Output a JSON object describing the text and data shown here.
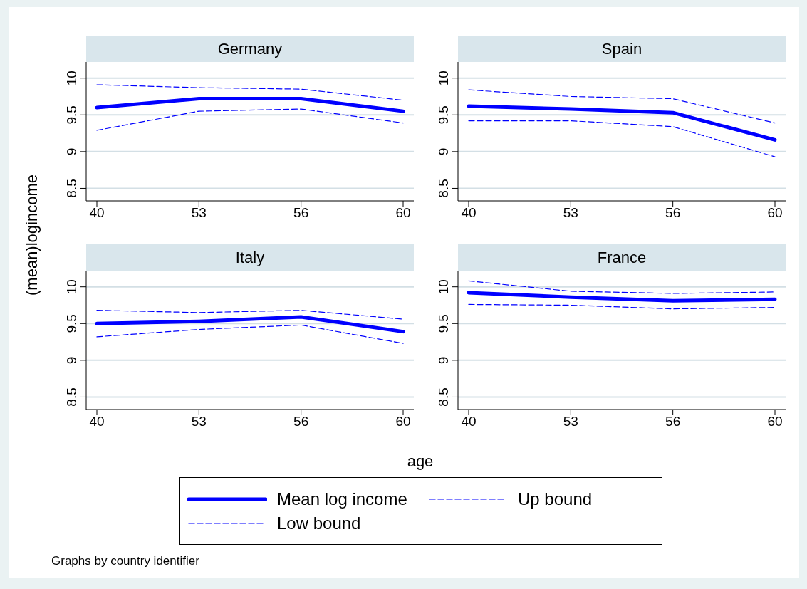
{
  "chart_data": [
    {
      "type": "line",
      "title": "Germany",
      "xlabel": "age",
      "ylabel": "(mean)logincome",
      "categories": [
        "40",
        "53",
        "56",
        "60"
      ],
      "ylim": [
        8.33,
        10.22
      ],
      "yticks": [
        8.5,
        9,
        9.5,
        10
      ],
      "grid": "y",
      "legend": "bottom",
      "annotations": [
        "Graphs by country identifier"
      ],
      "series": [
        {
          "name": "Mean log income",
          "color": "#0000ff",
          "line_style": "solid",
          "values": [
            9.6,
            9.72,
            9.72,
            9.55
          ]
        },
        {
          "name": "Up bound",
          "color": "#0000ff",
          "line_style": "dashed",
          "values": [
            9.91,
            9.87,
            9.85,
            9.7
          ]
        },
        {
          "name": "Low bound",
          "color": "#0000ff",
          "line_style": "dashed",
          "values": [
            9.29,
            9.55,
            9.58,
            9.39
          ]
        }
      ]
    },
    {
      "type": "line",
      "title": "Spain",
      "categories": [
        "40",
        "53",
        "56",
        "60"
      ],
      "ylim": [
        8.33,
        10.22
      ],
      "yticks": [
        8.5,
        9,
        9.5,
        10
      ],
      "grid": "y",
      "series": [
        {
          "color": "#0000ff",
          "line_style": "solid",
          "values": [
            9.62,
            9.58,
            9.53,
            9.16
          ]
        },
        {
          "color": "#0000ff",
          "line_style": "dashed",
          "values": [
            9.84,
            9.75,
            9.72,
            9.39
          ]
        },
        {
          "color": "#0000ff",
          "line_style": "dashed",
          "values": [
            9.42,
            9.42,
            9.34,
            8.93
          ]
        }
      ]
    },
    {
      "type": "line",
      "title": "Italy",
      "categories": [
        "40",
        "53",
        "56",
        "60"
      ],
      "ylim": [
        8.33,
        10.22
      ],
      "yticks": [
        8.5,
        9,
        9.5,
        10
      ],
      "grid": "y",
      "series": [
        {
          "color": "#0000ff",
          "line_style": "solid",
          "values": [
            9.5,
            9.53,
            9.59,
            9.39
          ]
        },
        {
          "color": "#0000ff",
          "line_style": "dashed",
          "values": [
            9.68,
            9.65,
            9.68,
            9.56
          ]
        },
        {
          "color": "#0000ff",
          "line_style": "dashed",
          "values": [
            9.32,
            9.42,
            9.48,
            9.23
          ]
        }
      ]
    },
    {
      "type": "line",
      "title": "France",
      "categories": [
        "40",
        "53",
        "56",
        "60"
      ],
      "ylim": [
        8.33,
        10.22
      ],
      "yticks": [
        8.5,
        9,
        9.5,
        10
      ],
      "grid": "y",
      "series": [
        {
          "color": "#0000ff",
          "line_style": "solid",
          "values": [
            9.92,
            9.86,
            9.81,
            9.83
          ]
        },
        {
          "color": "#0000ff",
          "line_style": "dashed",
          "values": [
            10.08,
            9.94,
            9.91,
            9.93
          ]
        },
        {
          "color": "#0000ff",
          "line_style": "dashed",
          "values": [
            9.76,
            9.75,
            9.7,
            9.72
          ]
        }
      ]
    }
  ]
}
